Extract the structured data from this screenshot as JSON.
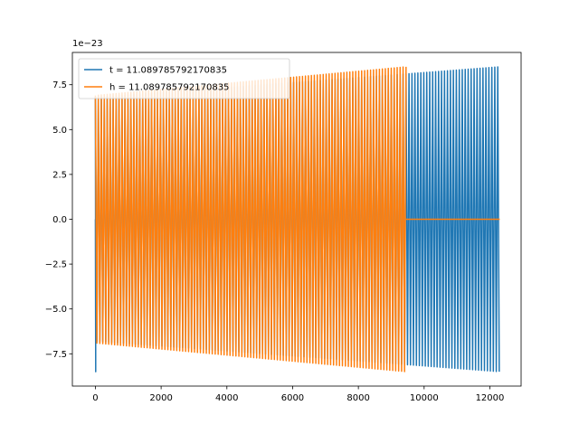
{
  "chart_data": {
    "type": "line",
    "title": "",
    "xlabel": "",
    "ylabel": "",
    "y_offset_label": "1e−23",
    "xlim": [
      -700,
      12950
    ],
    "ylim": [
      -9.3,
      9.3
    ],
    "xticks": [
      0,
      2000,
      4000,
      6000,
      8000,
      10000,
      12000
    ],
    "xtick_labels": [
      "0",
      "2000",
      "4000",
      "6000",
      "8000",
      "10000",
      "12000"
    ],
    "yticks": [
      7.5,
      5.0,
      2.5,
      0.0,
      -2.5,
      -5.0,
      -7.5
    ],
    "ytick_labels": [
      "7.5",
      "5.0",
      "2.5",
      "0.0",
      "−2.5",
      "−5.0",
      "−7.5"
    ],
    "grid": false,
    "legend_position": "top-left",
    "series": [
      {
        "name": "t = 11.089785792170835",
        "color": "#1f77b4",
        "kind": "oscillation",
        "x_start": 0,
        "x_end": 12300,
        "amplitude_start": 6.8,
        "amplitude_end": 8.5,
        "initial_dip": -8.5
      },
      {
        "name": "h = 11.089785792170835",
        "color": "#ff7f0e",
        "kind": "oscillation",
        "x_start": 0,
        "x_end": 9450,
        "amplitude_start": 6.9,
        "amplitude_end": 8.5,
        "tail_value": 0.0,
        "tail_end": 12300
      }
    ]
  }
}
